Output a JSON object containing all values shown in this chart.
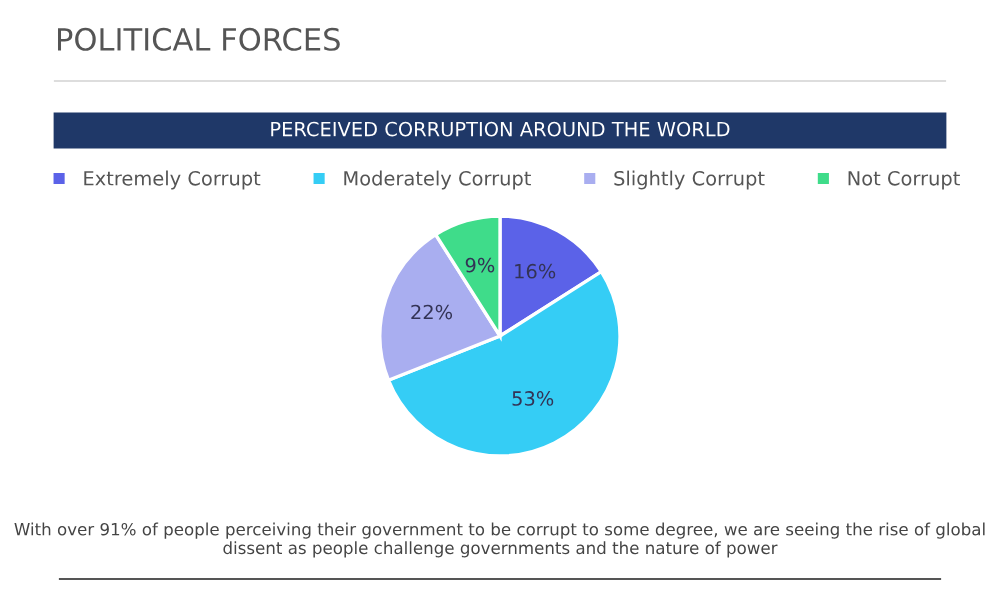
{
  "chart_data": {
    "type": "pie",
    "title": "PERCEIVED CORRUPTION AROUND THE WORLD",
    "categories": [
      "Extremely Corrupt",
      "Moderately Corrupt",
      "Slightly Corrupt",
      "Not Corrupt"
    ],
    "values": [
      16,
      53,
      22,
      9
    ],
    "colors": [
      "#5b62e8",
      "#35cdf5",
      "#a9aef0",
      "#3fdc8a"
    ],
    "value_labels": [
      "16%",
      "53%",
      "22%",
      "9%"
    ],
    "legend": "top",
    "annotations": [
      "POLITICAL FORCES",
      "With over 91% of people perceiving their government to be corrupt to some degree, we are seeing the rise of global dissent as people challenge governments and the nature of power"
    ]
  }
}
